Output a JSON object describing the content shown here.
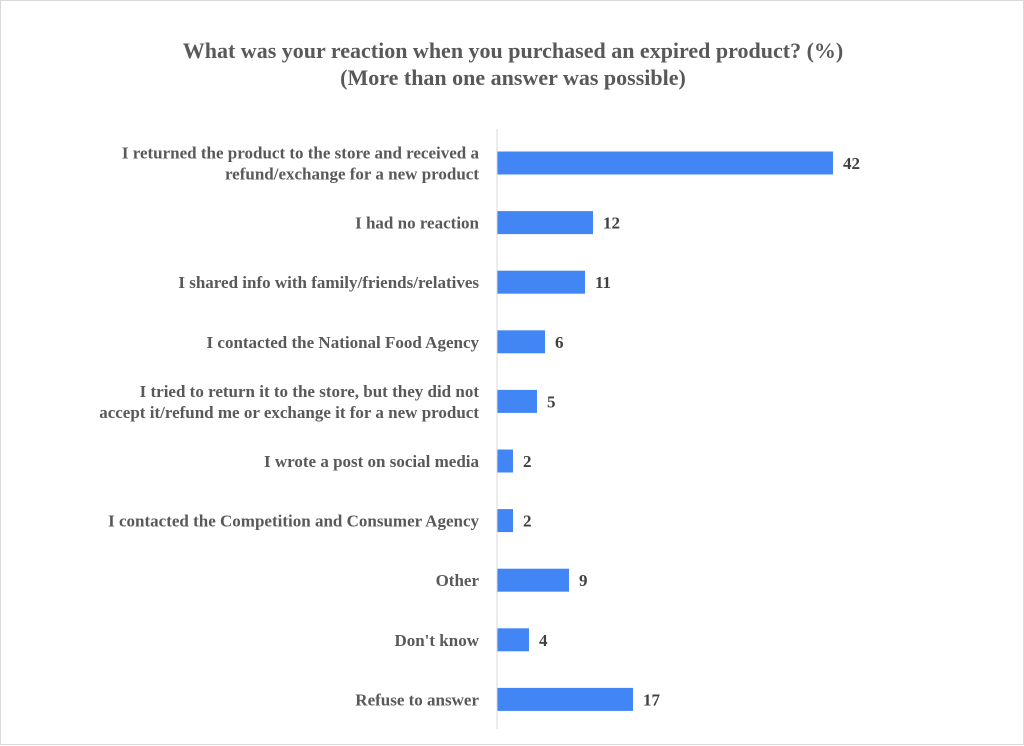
{
  "chart_data": {
    "type": "bar",
    "orientation": "horizontal",
    "title": "What was your reaction when you purchased an expired product? (%)",
    "subtitle": "(More than one answer was possible)",
    "categories": [
      [
        "I returned the product to the store and received a",
        "refund/exchange for a new product"
      ],
      [
        "I had no reaction"
      ],
      [
        "I shared info with family/friends/relatives"
      ],
      [
        "I contacted the National Food Agency"
      ],
      [
        "I tried to return it to the store, but they did not",
        "accept it/refund me or exchange it for a new product"
      ],
      [
        "I wrote a post on social media"
      ],
      [
        "I contacted the Competition and Consumer Agency"
      ],
      [
        "Other"
      ],
      [
        "Don't know"
      ],
      [
        "Refuse to answer"
      ]
    ],
    "values": [
      42,
      12,
      11,
      6,
      5,
      2,
      2,
      9,
      4,
      17
    ],
    "xlim": [
      0,
      50
    ],
    "grid": false,
    "legend": "none",
    "bar_color": "#4285f4"
  }
}
